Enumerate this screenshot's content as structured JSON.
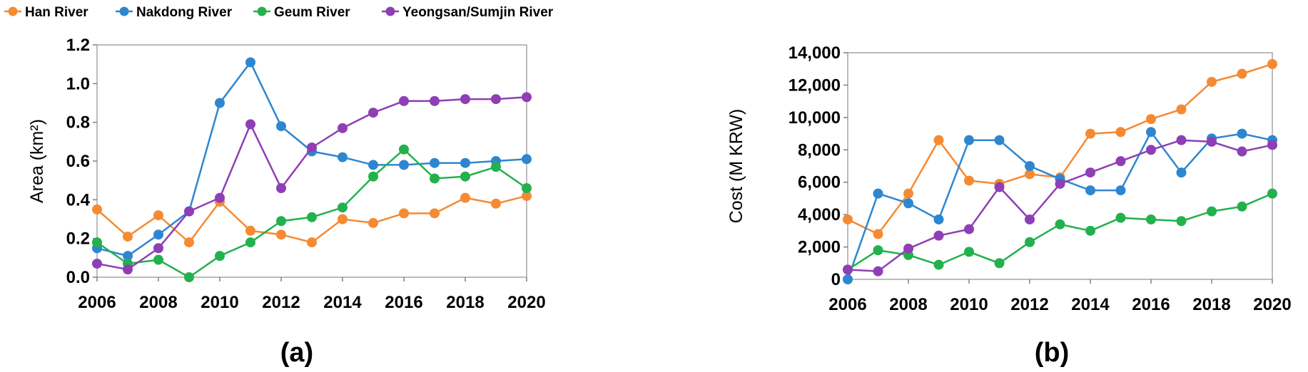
{
  "legend": [
    {
      "name": "Han River",
      "color": "#F58A32"
    },
    {
      "name": "Nakdong River",
      "color": "#2E86D1"
    },
    {
      "name": "Geum River",
      "color": "#22B14C"
    },
    {
      "name": "Yeongsan/Sumjin River",
      "color": "#8E3FB5"
    }
  ],
  "chart_data": [
    {
      "type": "line",
      "panel_label": "(a)",
      "xlabel": "",
      "ylabel": "Area (km²)",
      "xlim": [
        2006,
        2020
      ],
      "ylim": [
        0,
        1.2
      ],
      "x_ticks": [
        "2006",
        "2008",
        "2010",
        "2012",
        "2014",
        "2016",
        "2018",
        "2020"
      ],
      "y_ticks": [
        "0.0",
        "0.2",
        "0.4",
        "0.6",
        "0.8",
        "1.0",
        "1.2"
      ],
      "x": [
        2006,
        2007,
        2008,
        2009,
        2010,
        2011,
        2012,
        2013,
        2014,
        2015,
        2016,
        2017,
        2018,
        2019,
        2020
      ],
      "grid": false,
      "legend_position": "top",
      "series": [
        {
          "name": "Han River",
          "color": "#F58A32",
          "values": [
            0.35,
            0.21,
            0.32,
            0.18,
            0.39,
            0.24,
            0.22,
            0.18,
            0.3,
            0.28,
            0.33,
            0.33,
            0.41,
            0.38,
            0.42
          ]
        },
        {
          "name": "Nakdong River",
          "color": "#2E86D1",
          "values": [
            0.15,
            0.11,
            0.22,
            0.34,
            0.9,
            1.11,
            0.78,
            0.65,
            0.62,
            0.58,
            0.58,
            0.59,
            0.59,
            0.6,
            0.61
          ]
        },
        {
          "name": "Geum River",
          "color": "#22B14C",
          "values": [
            0.18,
            0.07,
            0.09,
            0.0,
            0.11,
            0.18,
            0.29,
            0.31,
            0.36,
            0.52,
            0.66,
            0.51,
            0.52,
            0.57,
            0.46
          ]
        },
        {
          "name": "Yeongsan/Sumjin River",
          "color": "#8E3FB5",
          "values": [
            0.07,
            0.04,
            0.15,
            0.34,
            0.41,
            0.79,
            0.46,
            0.67,
            0.77,
            0.85,
            0.91,
            0.91,
            0.92,
            0.92,
            0.93
          ]
        }
      ]
    },
    {
      "type": "line",
      "panel_label": "(b)",
      "xlabel": "",
      "ylabel": "Cost (M KRW)",
      "xlim": [
        2006,
        2020
      ],
      "ylim": [
        0,
        14000
      ],
      "x_ticks": [
        "2006",
        "2008",
        "2010",
        "2012",
        "2014",
        "2016",
        "2018",
        "2020"
      ],
      "y_ticks": [
        "0",
        "2,000",
        "4,000",
        "6,000",
        "8,000",
        "10,000",
        "12,000",
        "14,000"
      ],
      "x": [
        2006,
        2007,
        2008,
        2009,
        2010,
        2011,
        2012,
        2013,
        2014,
        2015,
        2016,
        2017,
        2018,
        2019,
        2020
      ],
      "grid": false,
      "legend_position": "top",
      "series": [
        {
          "name": "Han River",
          "color": "#F58A32",
          "values": [
            3700,
            2800,
            5300,
            8600,
            6100,
            5900,
            6500,
            6300,
            9000,
            9100,
            9900,
            10500,
            12200,
            12700,
            13300
          ]
        },
        {
          "name": "Nakdong River",
          "color": "#2E86D1",
          "values": [
            0,
            5300,
            4700,
            3700,
            8600,
            8600,
            7000,
            6200,
            5500,
            5500,
            9100,
            6600,
            8700,
            9000,
            8600
          ]
        },
        {
          "name": "Geum River",
          "color": "#22B14C",
          "values": [
            600,
            1800,
            1500,
            900,
            1700,
            1000,
            2300,
            3400,
            3000,
            3800,
            3700,
            3600,
            4200,
            4500,
            5300
          ]
        },
        {
          "name": "Yeongsan/Sumjin River",
          "color": "#8E3FB5",
          "values": [
            600,
            500,
            1900,
            2700,
            3100,
            5700,
            3700,
            5900,
            6600,
            7300,
            8000,
            8600,
            8500,
            7900,
            8300
          ]
        }
      ]
    }
  ]
}
